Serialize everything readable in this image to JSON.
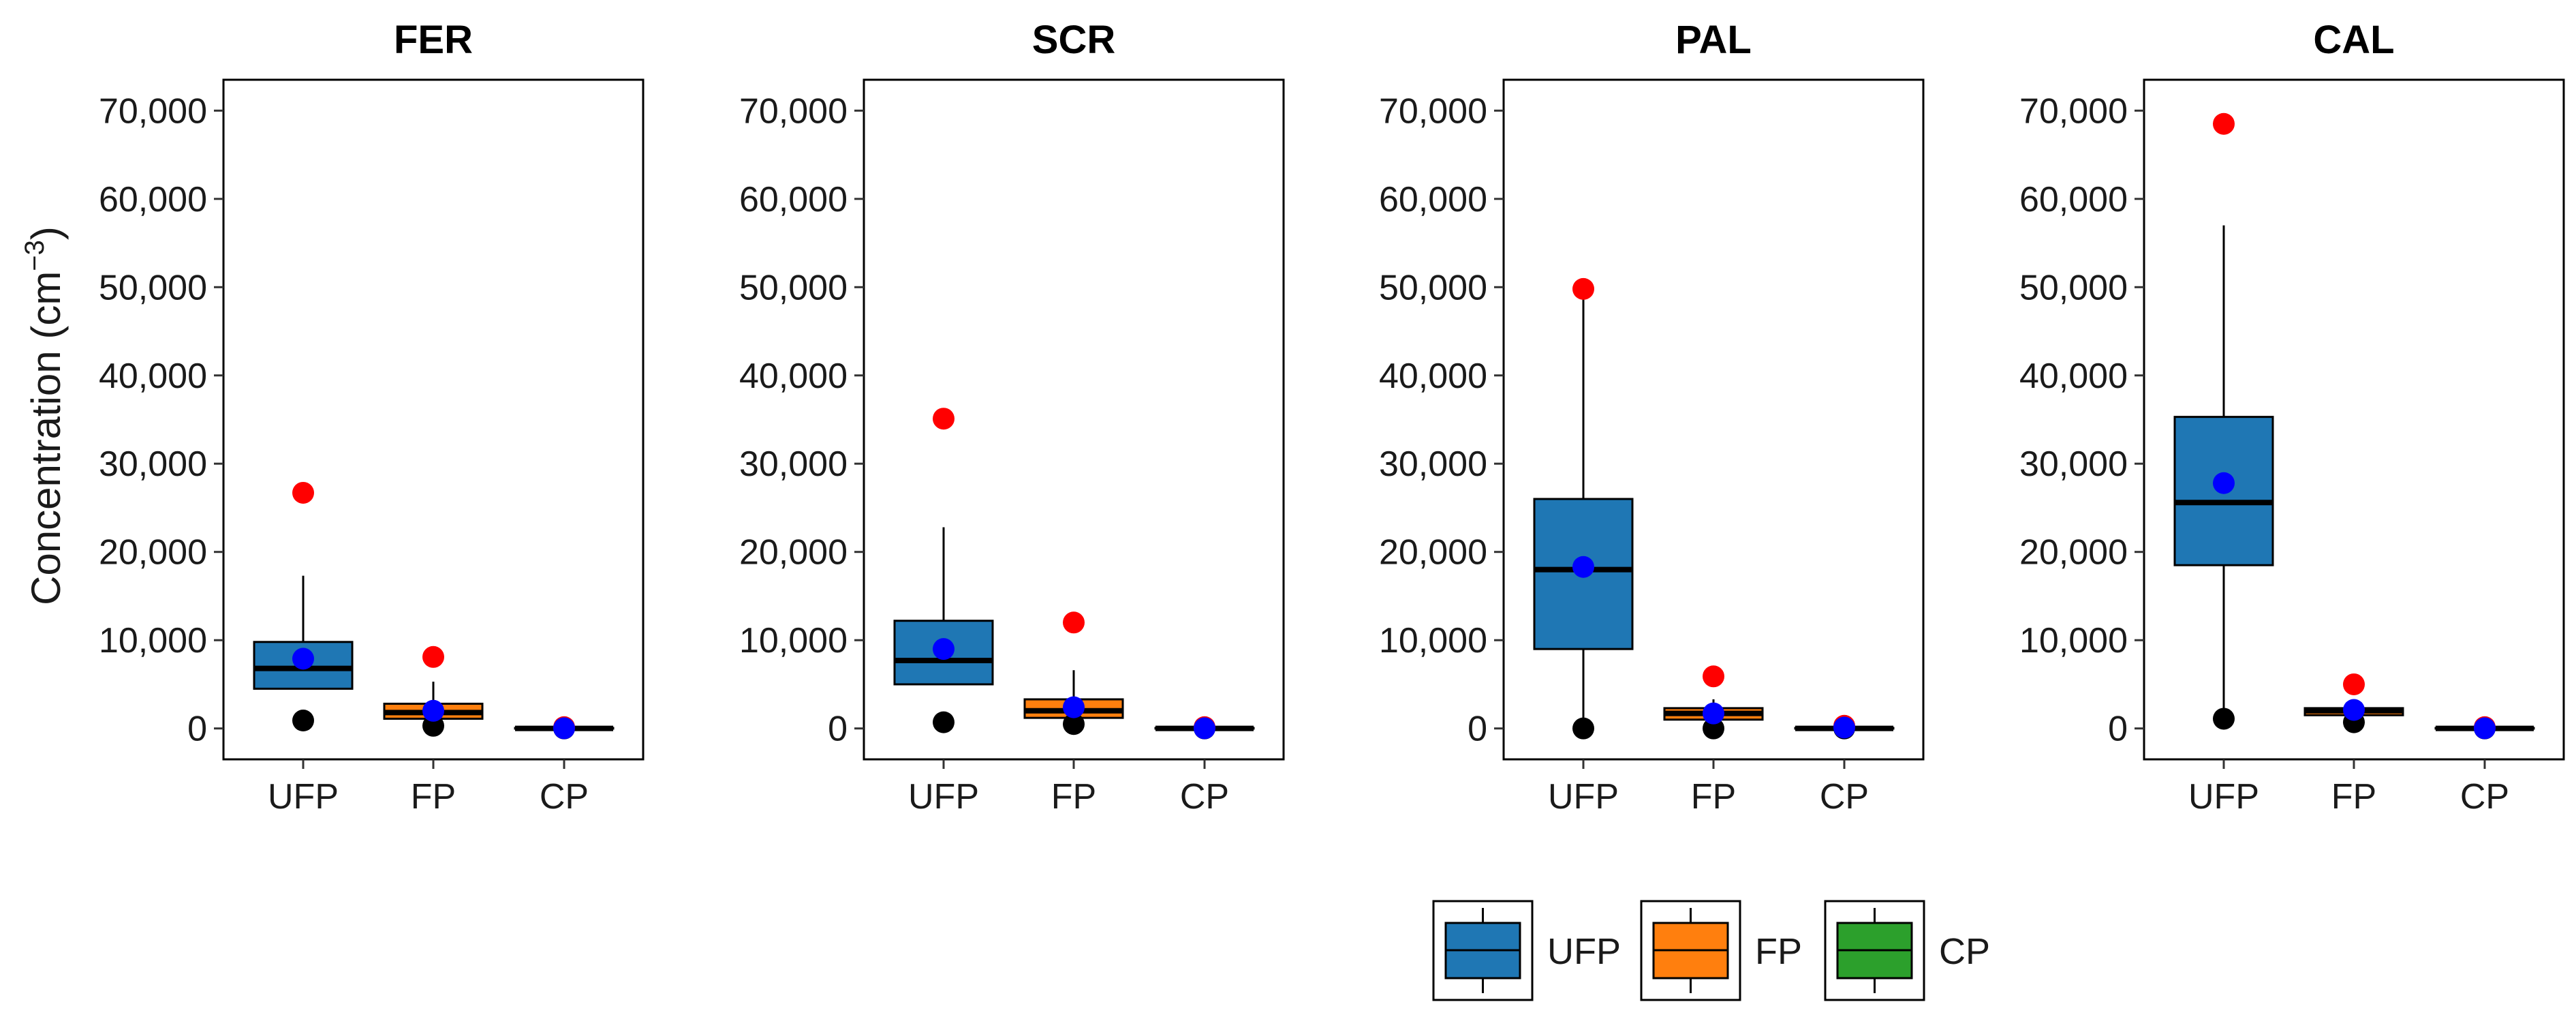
{
  "chart_data": {
    "type": "box",
    "ylabel": "Concentration (cm",
    "ylabel_superscript": "−3",
    "ylabel_close": ")",
    "ylim": [
      -3500,
      73500
    ],
    "yticks": [
      0,
      10000,
      20000,
      30000,
      40000,
      50000,
      60000,
      70000
    ],
    "ytick_labels": [
      "0",
      "10,000",
      "20,000",
      "30,000",
      "40,000",
      "50,000",
      "60,000",
      "70,000"
    ],
    "categories": [
      "UFP",
      "FP",
      "CP"
    ],
    "category_colors": {
      "UFP": "#1f77b4",
      "FP": "#ff7f0e",
      "CP": "#2ca02c"
    },
    "legend": [
      "UFP",
      "FP",
      "CP"
    ],
    "legend_position": "bottom",
    "marker_colors": {
      "max": "#ff0000",
      "mean": "#0000ff",
      "min": "#000000"
    },
    "panels": [
      {
        "title": "FER",
        "boxes": [
          {
            "category": "UFP",
            "q1": 4500,
            "median": 6800,
            "q3": 9800,
            "whisker_low": 4500,
            "whisker_high": 17300,
            "mean": 7900,
            "max": 26700,
            "min": 900
          },
          {
            "category": "FP",
            "q1": 1100,
            "median": 1800,
            "q3": 2800,
            "whisker_low": 1100,
            "whisker_high": 5300,
            "mean": 2000,
            "max": 8100,
            "min": 300
          },
          {
            "category": "CP",
            "q1": 0,
            "median": 0,
            "q3": 60,
            "whisker_low": 0,
            "whisker_high": 100,
            "mean": 20,
            "max": 150,
            "min": 0
          }
        ]
      },
      {
        "title": "SCR",
        "boxes": [
          {
            "category": "UFP",
            "q1": 5000,
            "median": 7700,
            "q3": 12200,
            "whisker_low": 5000,
            "whisker_high": 22800,
            "mean": 9000,
            "max": 35100,
            "min": 700
          },
          {
            "category": "FP",
            "q1": 1200,
            "median": 2000,
            "q3": 3300,
            "whisker_low": 1200,
            "whisker_high": 6600,
            "mean": 2400,
            "max": 12000,
            "min": 500
          },
          {
            "category": "CP",
            "q1": 0,
            "median": 0,
            "q3": 60,
            "whisker_low": 0,
            "whisker_high": 100,
            "mean": 20,
            "max": 150,
            "min": 0
          }
        ]
      },
      {
        "title": "PAL",
        "boxes": [
          {
            "category": "UFP",
            "q1": 9000,
            "median": 18000,
            "q3": 26000,
            "whisker_low": 0,
            "whisker_high": 49500,
            "mean": 18300,
            "max": 49800,
            "min": 0
          },
          {
            "category": "FP",
            "q1": 1000,
            "median": 1700,
            "q3": 2300,
            "whisker_low": 1000,
            "whisker_high": 3300,
            "mean": 1700,
            "max": 5900,
            "min": 0
          },
          {
            "category": "CP",
            "q1": 0,
            "median": 0,
            "q3": 60,
            "whisker_low": 0,
            "whisker_high": 100,
            "mean": 100,
            "max": 300,
            "min": 0
          }
        ]
      },
      {
        "title": "CAL",
        "boxes": [
          {
            "category": "UFP",
            "q1": 18500,
            "median": 25600,
            "q3": 35300,
            "whisker_low": 1100,
            "whisker_high": 57000,
            "mean": 27800,
            "max": 68500,
            "min": 1100
          },
          {
            "category": "FP",
            "q1": 1500,
            "median": 2000,
            "q3": 2300,
            "whisker_low": 1500,
            "whisker_high": 3000,
            "mean": 2100,
            "max": 5000,
            "min": 700
          },
          {
            "category": "CP",
            "q1": 0,
            "median": 0,
            "q3": 60,
            "whisker_low": 0,
            "whisker_high": 100,
            "mean": 20,
            "max": 150,
            "min": 0
          }
        ]
      }
    ]
  }
}
